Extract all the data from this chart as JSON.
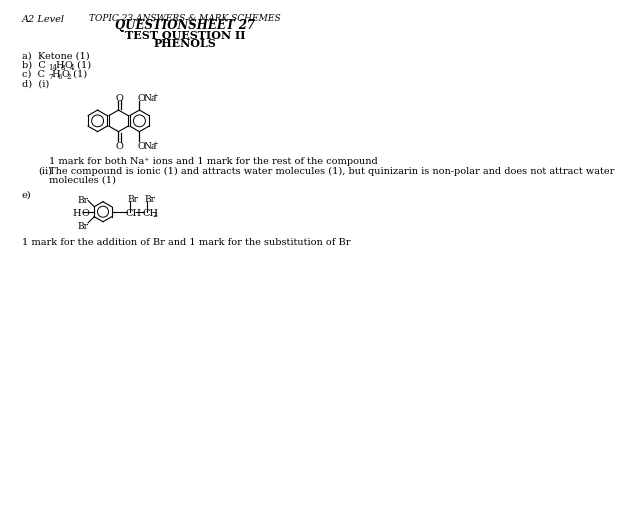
{
  "bg_color": "#ffffff",
  "top_left": "A2 Level",
  "top_center_small": "TOPIC 23 ANSWERS & MARK SCHEMES",
  "top_center_bold": "QUESTIONSHEET 27",
  "title1": "TEST QUESTION II",
  "title2": "PHENOLS",
  "a_text": "a)  Ketone (1)",
  "d_caption": "1 mark for both Na⁺ ions and 1 mark for the rest of the compound",
  "d_ii_label": "(ii)",
  "d_ii_line1": "The compound is ionic (1) and attracts water molecules (1), but quinizarin is non-polar and does not attract water",
  "d_ii_line2": "molecules (1)",
  "e_label": "e)",
  "e_caption": "1 mark for the addition of Br and 1 mark for the substitution of Br"
}
